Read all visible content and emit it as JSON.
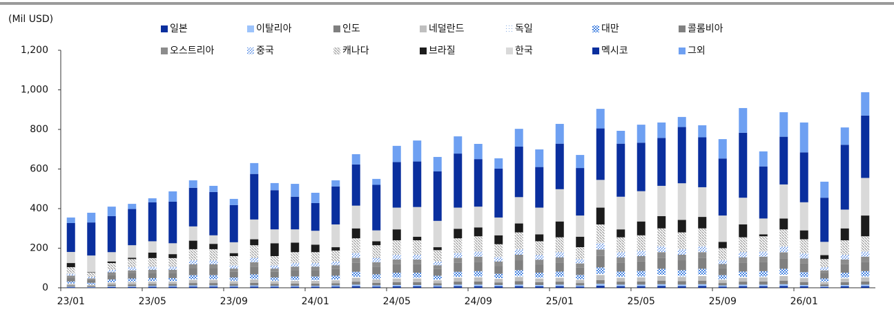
{
  "chart_data": {
    "type": "stacked_bar",
    "y_axis_label": "(Mil USD)",
    "categories": [
      "23/01",
      null,
      null,
      null,
      "23/05",
      null,
      null,
      null,
      "23/09",
      null,
      null,
      null,
      "24/01",
      null,
      null,
      null,
      "24/05",
      null,
      null,
      null,
      "24/09",
      null,
      null,
      null,
      "25/01",
      null,
      null,
      null,
      "25/05",
      null,
      null,
      null,
      "25/09",
      null,
      null,
      null,
      "26/01",
      null,
      null,
      null
    ],
    "ylim": [
      0,
      1200
    ],
    "yticks": [
      0,
      200,
      400,
      600,
      800,
      {
        "value": 1000,
        "label": "1,000"
      },
      {
        "value": 1200,
        "label": "1,200"
      }
    ],
    "series": [
      {
        "name": "일본",
        "color": "#0a2f9e",
        "values": [
          3,
          2,
          4,
          4,
          5,
          5,
          6,
          6,
          5,
          6,
          5,
          5,
          5,
          6,
          8,
          6,
          7,
          7,
          6,
          8,
          8,
          7,
          8,
          7,
          8,
          6,
          10,
          8,
          8,
          9,
          8,
          9,
          6,
          8,
          8,
          9,
          7,
          4,
          7,
          8
        ]
      },
      {
        "name": "이탈리아",
        "color": "#9cc3fb",
        "values": [
          3,
          2,
          4,
          4,
          5,
          5,
          6,
          6,
          5,
          6,
          5,
          5,
          5,
          6,
          8,
          6,
          7,
          7,
          6,
          8,
          8,
          7,
          8,
          7,
          8,
          6,
          10,
          8,
          8,
          9,
          8,
          9,
          6,
          8,
          8,
          9,
          7,
          4,
          7,
          8
        ]
      },
      {
        "name": "인도",
        "color": "#7f7f7f",
        "values": [
          6,
          5,
          8,
          9,
          9,
          9,
          12,
          12,
          10,
          13,
          10,
          11,
          11,
          11,
          15,
          13,
          14,
          14,
          11,
          15,
          16,
          13,
          17,
          14,
          15,
          12,
          19,
          15,
          16,
          18,
          17,
          18,
          12,
          15,
          16,
          18,
          15,
          9,
          14,
          16
        ]
      },
      {
        "name": "네덜란드",
        "color": "#bfbfbf",
        "values": [
          8,
          6,
          10,
          12,
          12,
          12,
          16,
          16,
          13,
          17,
          13,
          14,
          14,
          15,
          20,
          17,
          19,
          19,
          15,
          20,
          21,
          18,
          22,
          19,
          20,
          16,
          26,
          20,
          21,
          24,
          22,
          24,
          16,
          20,
          21,
          24,
          20,
          12,
          19,
          21
        ]
      },
      {
        "name": "독일",
        "color": "#7fa6e0",
        "pattern": "dots",
        "values": [
          2,
          2,
          3,
          3,
          3,
          3,
          4,
          4,
          3,
          4,
          3,
          4,
          4,
          4,
          5,
          4,
          5,
          5,
          4,
          5,
          5,
          4,
          6,
          5,
          5,
          4,
          6,
          5,
          5,
          6,
          6,
          6,
          4,
          5,
          5,
          6,
          5,
          3,
          5,
          5
        ]
      },
      {
        "name": "대만",
        "color": "#3f7fe0",
        "pattern": "checker",
        "values": [
          10,
          8,
          13,
          15,
          15,
          15,
          20,
          20,
          16,
          22,
          16,
          18,
          18,
          19,
          25,
          22,
          24,
          24,
          19,
          25,
          26,
          22,
          28,
          24,
          26,
          21,
          32,
          26,
          27,
          30,
          28,
          30,
          20,
          26,
          26,
          30,
          25,
          15,
          24,
          26
        ]
      },
      {
        "name": "콜롬비아",
        "color": "#808080",
        "values": [
          19,
          14,
          23,
          26,
          27,
          27,
          35,
          35,
          29,
          39,
          29,
          32,
          32,
          34,
          45,
          39,
          43,
          43,
          34,
          45,
          47,
          40,
          50,
          42,
          46,
          37,
          58,
          46,
          48,
          54,
          50,
          54,
          36,
          46,
          47,
          53,
          44,
          26,
          43,
          47
        ]
      },
      {
        "name": "오스트리아",
        "color": "#8c8c8c",
        "values": [
          10,
          8,
          13,
          15,
          15,
          15,
          20,
          20,
          16,
          22,
          16,
          18,
          18,
          19,
          25,
          22,
          24,
          24,
          19,
          25,
          26,
          22,
          28,
          24,
          26,
          21,
          32,
          26,
          27,
          30,
          28,
          30,
          20,
          26,
          26,
          30,
          25,
          15,
          24,
          26
        ]
      },
      {
        "name": "중국",
        "color": "#3a78e0",
        "pattern": "dash",
        "values": [
          10,
          8,
          13,
          15,
          15,
          15,
          20,
          20,
          16,
          22,
          16,
          18,
          18,
          19,
          25,
          22,
          24,
          24,
          19,
          25,
          26,
          22,
          28,
          24,
          26,
          21,
          32,
          26,
          27,
          30,
          28,
          30,
          20,
          26,
          26,
          30,
          25,
          15,
          24,
          26
        ]
      },
      {
        "name": "캐나다",
        "color": "#a6a6a6",
        "pattern": "hatch",
        "values": [
          33,
          23,
          34,
          42,
          44,
          44,
          56,
          56,
          47,
          64,
          47,
          55,
          55,
          55,
          74,
          64,
          73,
          73,
          57,
          74,
          77,
          65,
          85,
          69,
          75,
          61,
          95,
          75,
          78,
          90,
          85,
          90,
          60,
          75,
          77,
          86,
          72,
          42,
          73,
          77
        ]
      },
      {
        "name": "브라질",
        "color": "#1c1c1c",
        "values": [
          21,
          2,
          8,
          7,
          28,
          20,
          43,
          27,
          15,
          30,
          65,
          48,
          38,
          17,
          50,
          20,
          55,
          18,
          15,
          48,
          45,
          45,
          45,
          35,
          80,
          53,
          85,
          40,
          70,
          62,
          63,
          58,
          32,
          65,
          10,
          55,
          45,
          20,
          60,
          105
        ]
      },
      {
        "name": "한국",
        "color": "#d9d9d9",
        "values": [
          56,
          83,
          47,
          63,
          57,
          55,
          72,
          43,
          55,
          100,
          70,
          67,
          70,
          115,
          115,
          55,
          110,
          150,
          133,
          107,
          105,
          90,
          133,
          135,
          163,
          107,
          140,
          165,
          153,
          153,
          185,
          150,
          133,
          135,
          80,
          172,
          142,
          67,
          95,
          190
        ]
      },
      {
        "name": "멕시코",
        "color": "#0a2f9e",
        "values": [
          146,
          167,
          182,
          183,
          197,
          210,
          195,
          219,
          188,
          230,
          198,
          165,
          140,
          192,
          208,
          230,
          230,
          230,
          250,
          273,
          240,
          247,
          255,
          205,
          230,
          240,
          260,
          268,
          245,
          242,
          284,
          252,
          288,
          328,
          263,
          241,
          252,
          223,
          327,
          315
        ]
      },
      {
        "name": "그외",
        "color": "#6ea0f2",
        "values": [
          28,
          49,
          48,
          26,
          20,
          52,
          38,
          31,
          31,
          55,
          36,
          65,
          52,
          31,
          52,
          30,
          82,
          106,
          73,
          87,
          77,
          52,
          90,
          89,
          100,
          66,
          99,
          65,
          91,
          78,
          51,
          61,
          98,
          125,
          76,
          124,
          151,
          81,
          88,
          118
        ]
      }
    ]
  }
}
